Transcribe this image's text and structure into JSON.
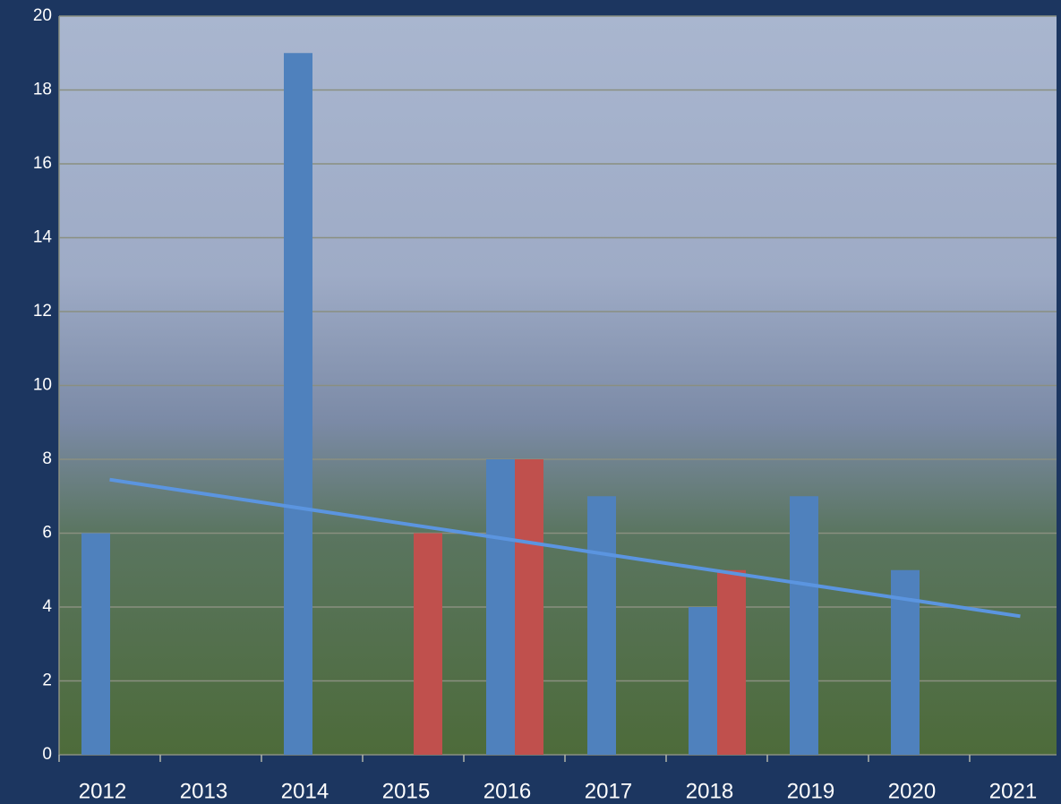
{
  "chart_data": {
    "type": "bar",
    "categories": [
      "2012",
      "2013",
      "2014",
      "2015",
      "2016",
      "2017",
      "2018",
      "2019",
      "2020",
      "2021"
    ],
    "series": [
      {
        "color": "#4f81bd",
        "values": [
          6,
          null,
          19,
          null,
          8,
          7,
          4,
          7,
          5,
          null
        ]
      },
      {
        "color": "#c0504d",
        "values": [
          null,
          null,
          null,
          6,
          8,
          null,
          5,
          null,
          null,
          null
        ]
      },
      {
        "type": "line",
        "color": "#5b95e0",
        "values": [
          7.45,
          7.04,
          6.63,
          6.22,
          5.81,
          5.39,
          4.98,
          4.57,
          4.16,
          3.75
        ]
      }
    ],
    "ylim": [
      0,
      20
    ],
    "yticks": [
      0,
      2,
      4,
      6,
      8,
      10,
      12,
      14,
      16,
      18,
      20
    ],
    "grid": true
  }
}
